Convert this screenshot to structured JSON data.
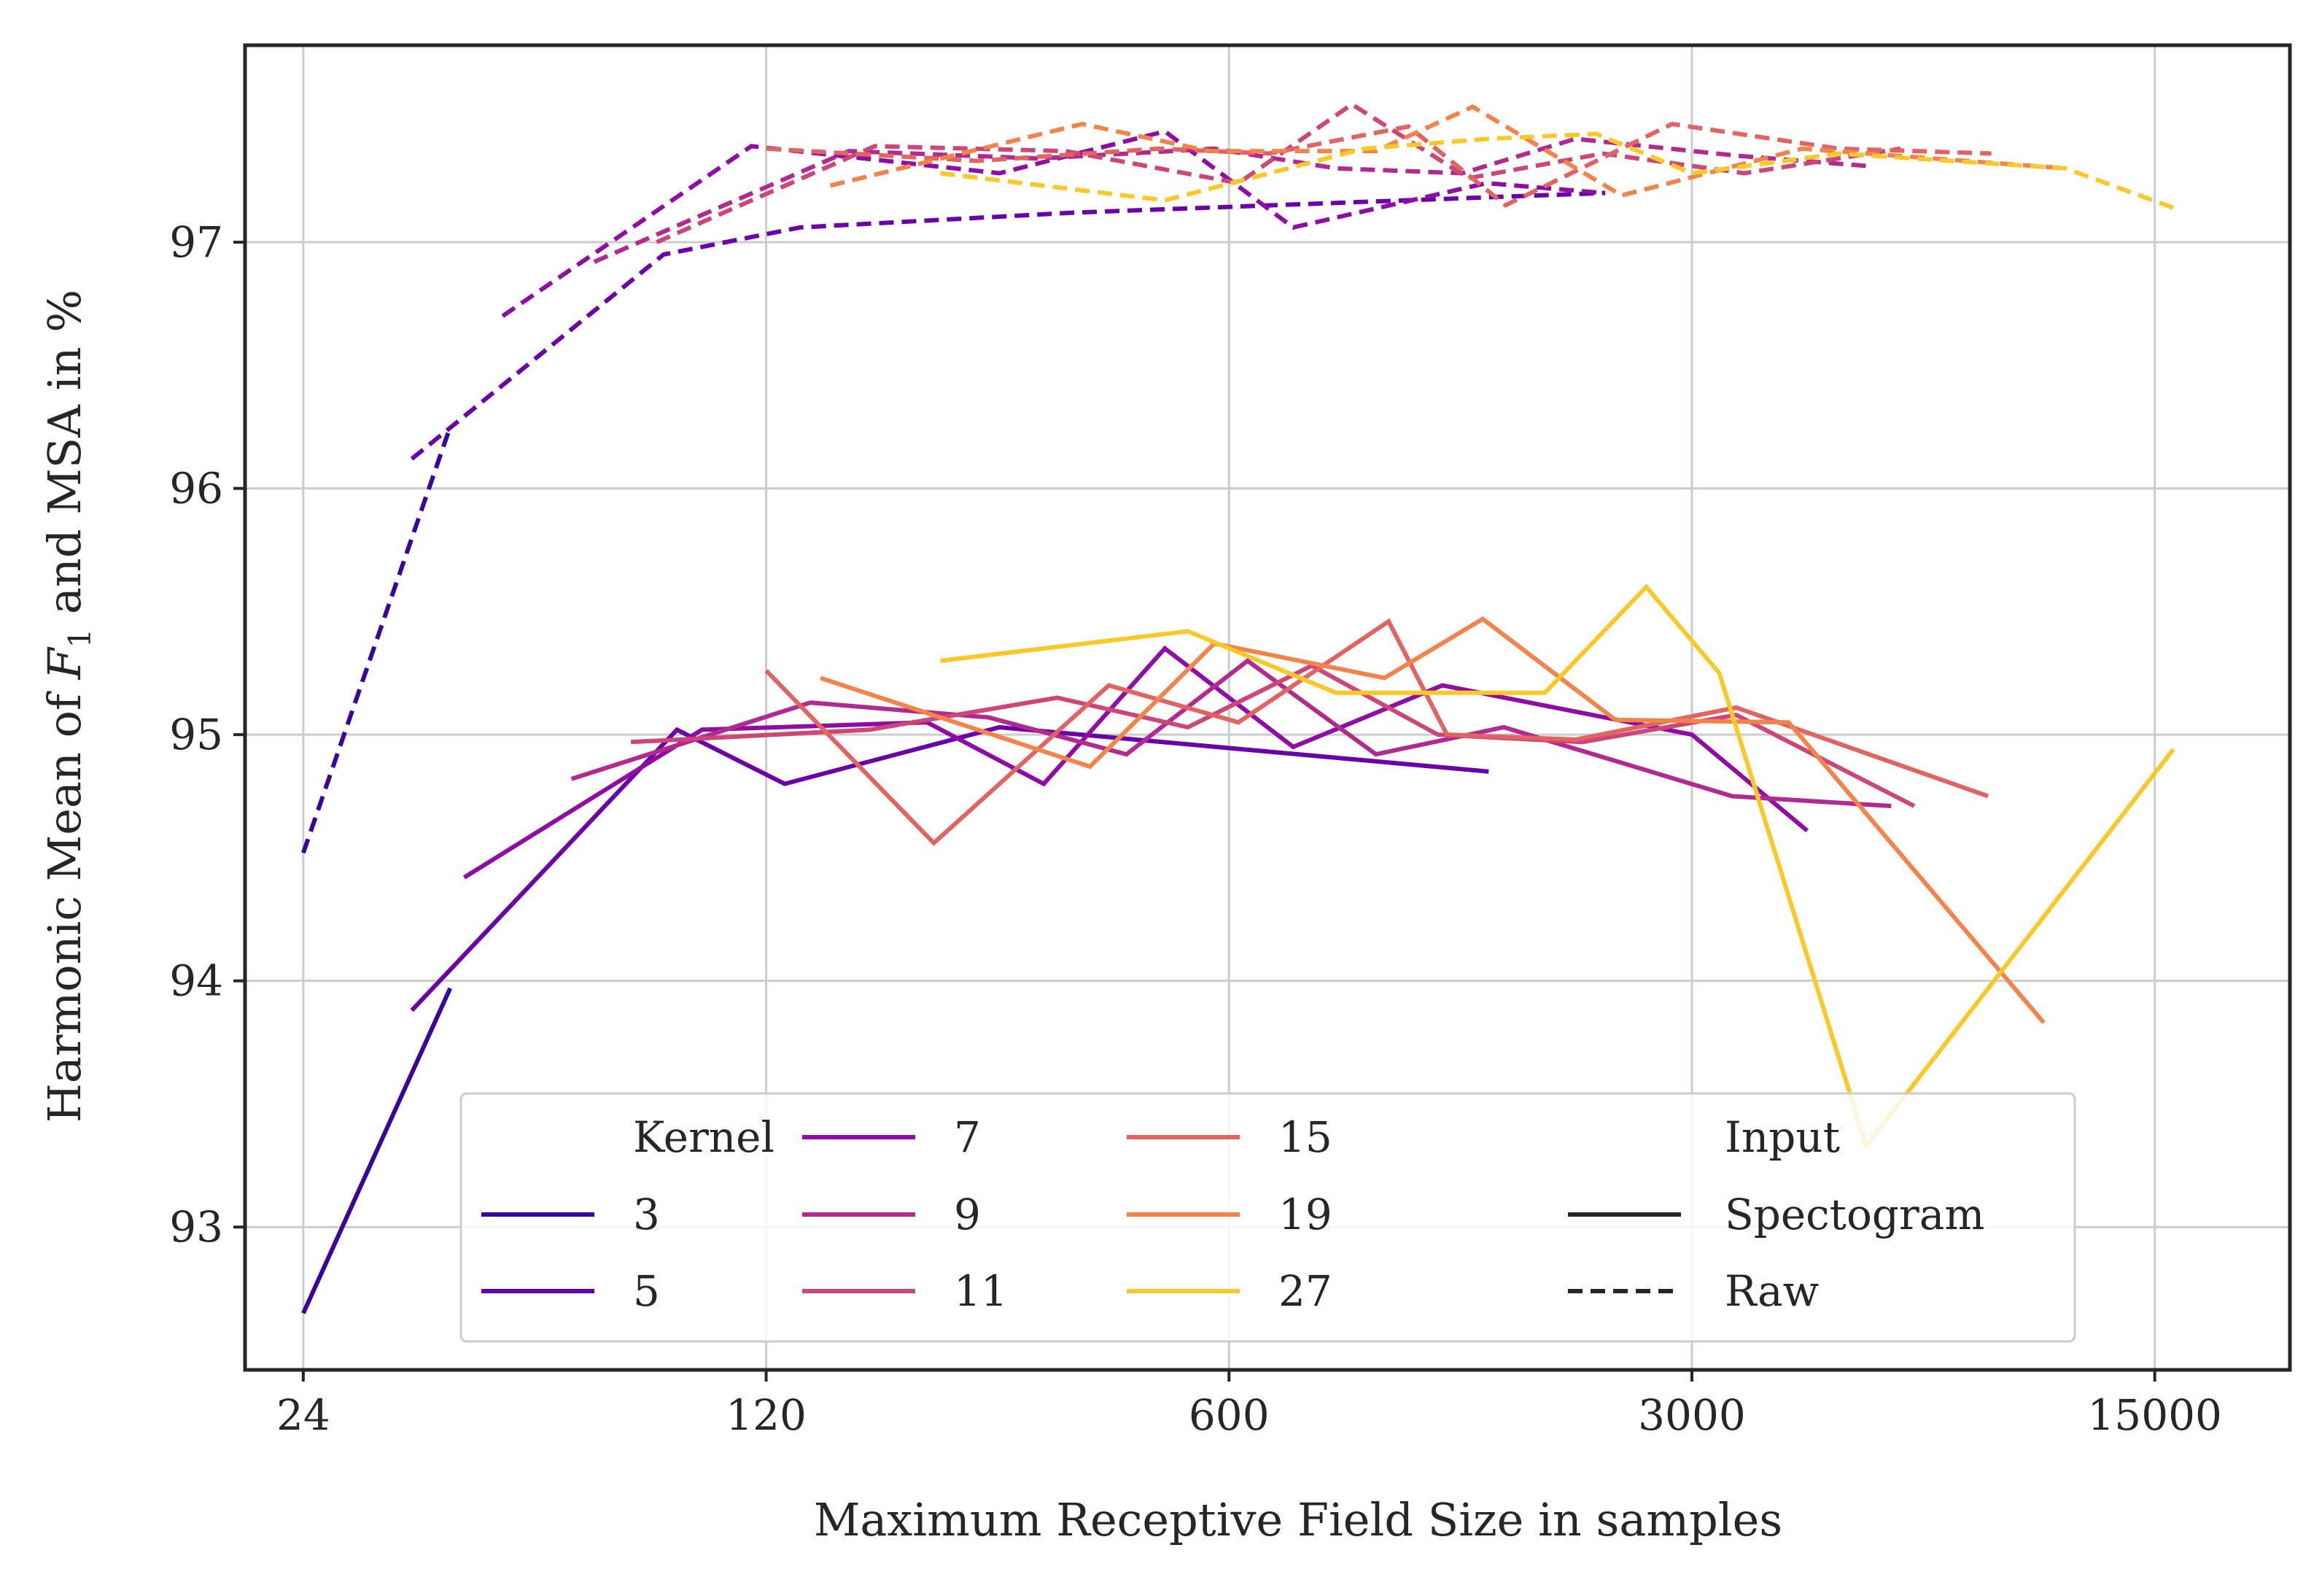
{
  "chart_data": {
    "type": "line",
    "title": "",
    "xlabel": "Maximum Receptive Field Size in samples",
    "ylabel": "Harmonic Mean of F₁ and MSA in %",
    "ylabel_parts": {
      "before": "Harmonic Mean of ",
      "var": "F",
      "sub": "1",
      "after": " and MSA in %"
    },
    "xscale": "log",
    "xlim": [
      19.6,
      24000
    ],
    "ylim": [
      92.42,
      97.8
    ],
    "xticks": [
      24,
      120,
      600,
      3000,
      15000
    ],
    "xtick_labels": [
      "24",
      "120",
      "600",
      "3000",
      "15000"
    ],
    "yticks": [
      93,
      94,
      95,
      96,
      97
    ],
    "ytick_labels": [
      "93",
      "94",
      "95",
      "96",
      "97"
    ],
    "grid": true,
    "legend": {
      "placement": "lower-center",
      "kernel_title": "Kernel",
      "input_title": "Input",
      "input_entries": [
        {
          "label": "Spectogram",
          "style": "solid"
        },
        {
          "label": "Raw",
          "style": "dashed"
        }
      ]
    },
    "series": [
      {
        "kernel": "3",
        "color": "#3a049a",
        "spectrogram": {
          "x": [
            24,
            40
          ],
          "y": [
            92.65,
            93.97
          ]
        },
        "raw": {
          "x": [
            24,
            40
          ],
          "y": [
            94.52,
            96.25
          ]
        }
      },
      {
        "kernel": "5",
        "color": "#6a00a8",
        "spectrogram": {
          "x": [
            35,
            88,
            128,
            270,
            1480
          ],
          "y": [
            93.88,
            95.02,
            94.8,
            95.03,
            94.85
          ]
        },
        "raw": {
          "x": [
            35,
            84,
            135,
            350,
            2220
          ],
          "y": [
            96.12,
            96.95,
            97.06,
            97.12,
            97.2
          ]
        }
      },
      {
        "kernel": "7",
        "color": "#8f0da4",
        "spectrogram": {
          "x": [
            42,
            96,
            210,
            315,
            480,
            750,
            1260,
            3000,
            4480
          ],
          "y": [
            94.42,
            95.02,
            95.05,
            94.8,
            95.35,
            94.95,
            95.2,
            95.0,
            94.61
          ]
        },
        "raw": {
          "x": [
            48,
            114,
            270,
            480,
            750,
            1470,
            2200
          ],
          "y": [
            96.7,
            97.39,
            97.28,
            97.45,
            97.06,
            97.24,
            97.2
          ]
        }
      },
      {
        "kernel": "9",
        "color": "#b12a90",
        "spectrogram": {
          "x": [
            61,
            140,
            260,
            420,
            640,
            1000,
            1560,
            3450,
            6000
          ],
          "y": [
            94.82,
            95.13,
            95.07,
            94.92,
            95.3,
            94.92,
            95.03,
            94.75,
            94.71
          ]
        },
        "raw": {
          "x": [
            66,
            160,
            310,
            570,
            870,
            1350,
            2000,
            3550,
            5500
          ],
          "y": [
            96.92,
            97.37,
            97.34,
            97.38,
            97.3,
            97.28,
            97.42,
            97.35,
            97.31
          ]
        }
      },
      {
        "kernel": "11",
        "color": "#cc4778",
        "spectrogram": {
          "x": [
            75,
            172,
            330,
            520,
            800,
            1240,
            2050,
            3500,
            6500
          ],
          "y": [
            94.97,
            95.02,
            95.15,
            95.03,
            95.28,
            95.0,
            94.97,
            95.08,
            94.71
          ]
        },
        "raw": {
          "x": [
            82,
            175,
            340,
            620,
            920,
            1380,
            2200,
            3600,
            6200
          ],
          "y": [
            97.0,
            97.39,
            97.37,
            97.24,
            97.56,
            97.26,
            97.36,
            97.28,
            97.38
          ]
        }
      },
      {
        "kernel": "15",
        "color": "#e16462",
        "spectrogram": {
          "x": [
            120,
            215,
            395,
            620,
            1045,
            1280,
            2000,
            3500,
            8400
          ],
          "y": [
            95.26,
            94.56,
            95.2,
            95.05,
            95.46,
            95.0,
            94.98,
            95.11,
            94.75
          ]
        },
        "raw": {
          "x": [
            120,
            250,
            470,
            690,
            1120,
            1570,
            2800,
            5000,
            8500
          ],
          "y": [
            97.38,
            97.33,
            97.38,
            97.36,
            97.47,
            97.15,
            97.48,
            97.38,
            97.36
          ]
        }
      },
      {
        "kernel": "19",
        "color": "#f2844b",
        "spectrogram": {
          "x": [
            145,
            370,
            570,
            1030,
            1450,
            2300,
            4200,
            10200
          ],
          "y": [
            95.23,
            94.87,
            95.37,
            95.23,
            95.47,
            95.06,
            95.05,
            93.83
          ]
        },
        "raw": {
          "x": [
            150,
            360,
            560,
            1000,
            1400,
            2350,
            4400,
            11000
          ],
          "y": [
            97.23,
            97.48,
            97.37,
            97.37,
            97.55,
            97.19,
            97.38,
            97.3
          ]
        }
      },
      {
        "kernel": "27",
        "color": "#fbc82a",
        "spectrogram": {
          "x": [
            220,
            520,
            870,
            1440,
            1800,
            2560,
            3300,
            5500,
            16000
          ],
          "y": [
            95.3,
            95.42,
            95.17,
            95.17,
            95.17,
            95.6,
            95.25,
            93.33,
            94.94
          ]
        },
        "raw": {
          "x": [
            220,
            480,
            960,
            1480,
            2150,
            3000,
            5000,
            11000,
            16000
          ],
          "y": [
            97.28,
            97.17,
            97.38,
            97.42,
            97.44,
            97.28,
            97.36,
            97.3,
            97.14
          ]
        }
      }
    ]
  }
}
